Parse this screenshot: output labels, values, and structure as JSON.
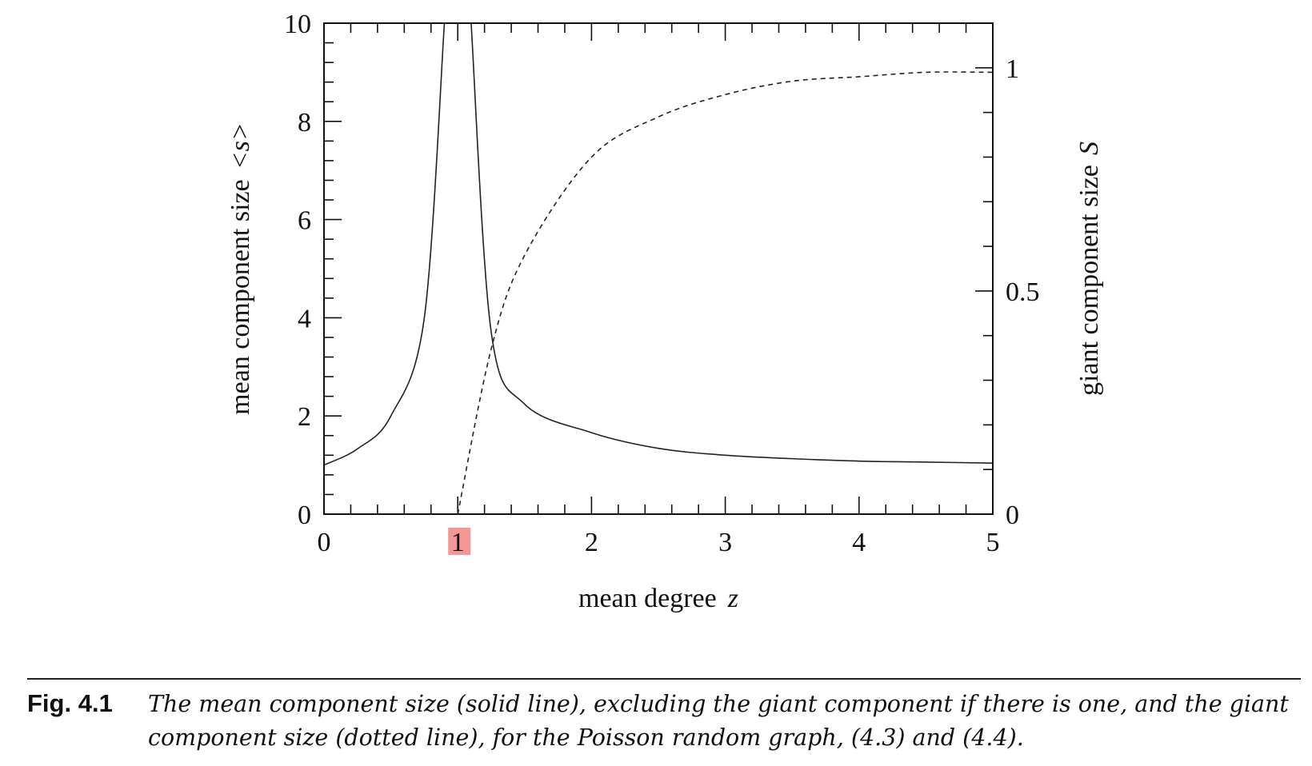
{
  "chart_data": {
    "type": "line",
    "xlabel": "mean degree",
    "xlabel_var": "z",
    "ylabel": "mean component size",
    "ylabel_var": "<s>",
    "y2label": "giant component size",
    "y2label_var": "S",
    "xlim": [
      0,
      5
    ],
    "ylim": [
      0,
      10
    ],
    "y2lim": [
      0,
      1.1
    ],
    "x_ticks": [
      "0",
      "1",
      "2",
      "3",
      "4",
      "5"
    ],
    "y_ticks": [
      "0",
      "2",
      "4",
      "6",
      "8",
      "10"
    ],
    "y2_ticks": [
      "0",
      "0.5",
      "1"
    ],
    "highlighted_tick": "1",
    "highlight_color": "#f28b8b",
    "grid": false,
    "series": [
      {
        "style": "solid",
        "axis": "left",
        "x": [
          0,
          0.25,
          0.5,
          0.75,
          0.9,
          1.1,
          1.25,
          1.5,
          2,
          2.5,
          3,
          3.5,
          4,
          4.5,
          5
        ],
        "y": [
          1.0,
          1.33,
          2.0,
          4.0,
          10.0,
          10.0,
          3.71,
          2.24,
          1.66,
          1.34,
          1.2,
          1.13,
          1.08,
          1.06,
          1.04
        ]
      },
      {
        "style": "dashed",
        "axis": "right",
        "x": [
          1,
          1.25,
          1.5,
          2,
          2.5,
          3,
          3.5,
          4,
          4.5,
          5
        ],
        "y": [
          0,
          0.37,
          0.58,
          0.8,
          0.89,
          0.94,
          0.97,
          0.98,
          0.99,
          0.99
        ]
      }
    ]
  },
  "caption": {
    "number": "Fig. 4.1",
    "text": "The mean component size (solid line), excluding the giant component if there is one, and the giant component size (dotted line), for the Poisson random graph, (4.3) and (4.4)."
  }
}
